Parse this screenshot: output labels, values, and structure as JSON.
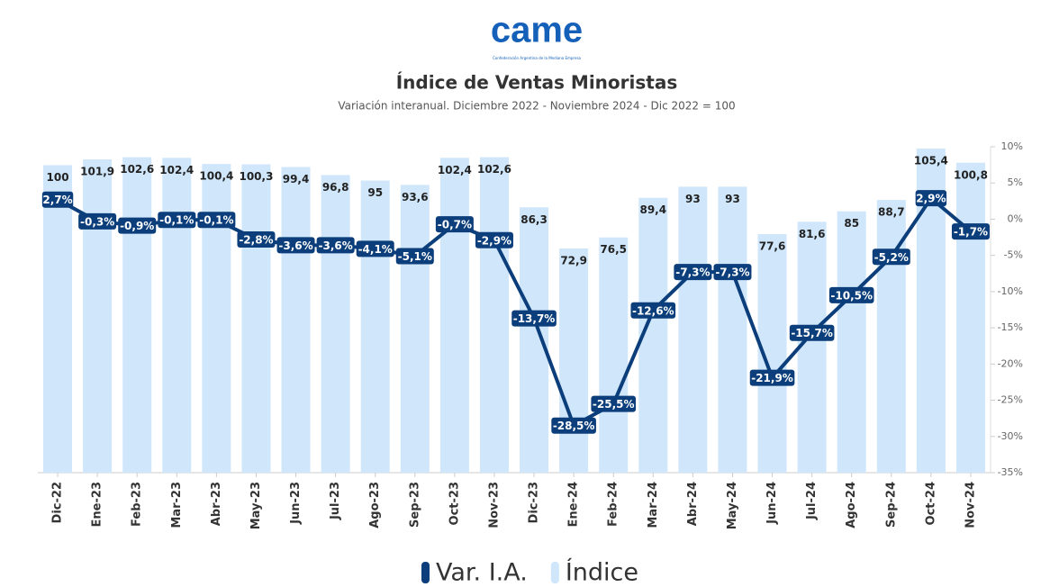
{
  "chart_data": {
    "type": "bar",
    "logo": "came",
    "logo_subtitle": "Confederación Argentina de la Mediana Empresa",
    "title": "Índice de Ventas Minoristas",
    "subtitle": "Variación interanual. Diciembre 2022 - Noviembre 2024 - Dic 2022 = 100",
    "categories": [
      "Dic-22",
      "Ene-23",
      "Feb-23",
      "Mar-23",
      "Abr-23",
      "May-23",
      "Jun-23",
      "Jul-23",
      "Ago-23",
      "Sep-23",
      "Oct-23",
      "Nov-23",
      "Dic-23",
      "Ene-24",
      "Feb-24",
      "Mar-24",
      "Abr-24",
      "May-24",
      "Jun-24",
      "Jul-24",
      "Ago-24",
      "Sep-24",
      "Oct-24",
      "Nov-24"
    ],
    "series": [
      {
        "name": "Var. I.A.",
        "type": "line",
        "axis": "y2",
        "color": "#0b3e7a",
        "values": [
          2.7,
          -0.3,
          -0.9,
          -0.1,
          -0.1,
          -2.8,
          -3.6,
          -3.6,
          -4.1,
          -5.1,
          -0.7,
          -2.9,
          -13.7,
          -28.5,
          -25.5,
          -12.6,
          -7.3,
          -7.3,
          -21.9,
          -15.7,
          -10.5,
          -5.2,
          2.9,
          -1.7
        ],
        "value_labels": [
          "2,7%",
          "-0,3%",
          "-0,9%",
          "-0,1%",
          "-0,1%",
          "-2,8%",
          "-3,6%",
          "-3,6%",
          "-4,1%",
          "-5,1%",
          "-0,7%",
          "-2,9%",
          "-13,7%",
          "-28,5%",
          "-25,5%",
          "-12,6%",
          "-7,3%",
          "-7,3%",
          "-21,9%",
          "-15,7%",
          "-10,5%",
          "-5,2%",
          "2,9%",
          "-1,7%"
        ]
      },
      {
        "name": "Índice",
        "type": "bar",
        "color": "#cfe6fb",
        "values": [
          100,
          101.9,
          102.6,
          102.4,
          100.4,
          100.3,
          99.4,
          96.8,
          95,
          93.6,
          102.4,
          102.6,
          86.3,
          72.9,
          76.5,
          89.4,
          93,
          93,
          77.6,
          81.6,
          85,
          88.7,
          105.4,
          100.8
        ],
        "value_labels": [
          "100",
          "101,9",
          "102,6",
          "102,4",
          "100,4",
          "100,3",
          "99,4",
          "96,8",
          "95",
          "93,6",
          "102,4",
          "102,6",
          "86,3",
          "72,9",
          "76,5",
          "89,4",
          "93",
          "93",
          "77,6",
          "81,6",
          "85",
          "88,7",
          "105,4",
          "100,8"
        ]
      }
    ],
    "ylim": [
      0,
      106
    ],
    "y2lim": [
      -35,
      10
    ],
    "y2ticks": [
      {
        "value": 10,
        "label": "10%"
      },
      {
        "value": 5,
        "label": "5%"
      },
      {
        "value": 0,
        "label": "0%"
      },
      {
        "value": -5,
        "label": "-5%"
      },
      {
        "value": -10,
        "label": "-10%"
      },
      {
        "value": -15,
        "label": "-15%"
      },
      {
        "value": -20,
        "label": "-20%"
      },
      {
        "value": -25,
        "label": "-25%"
      },
      {
        "value": -30,
        "label": "-30%"
      },
      {
        "value": -35,
        "label": "-35%"
      }
    ],
    "legend": "bottom"
  }
}
